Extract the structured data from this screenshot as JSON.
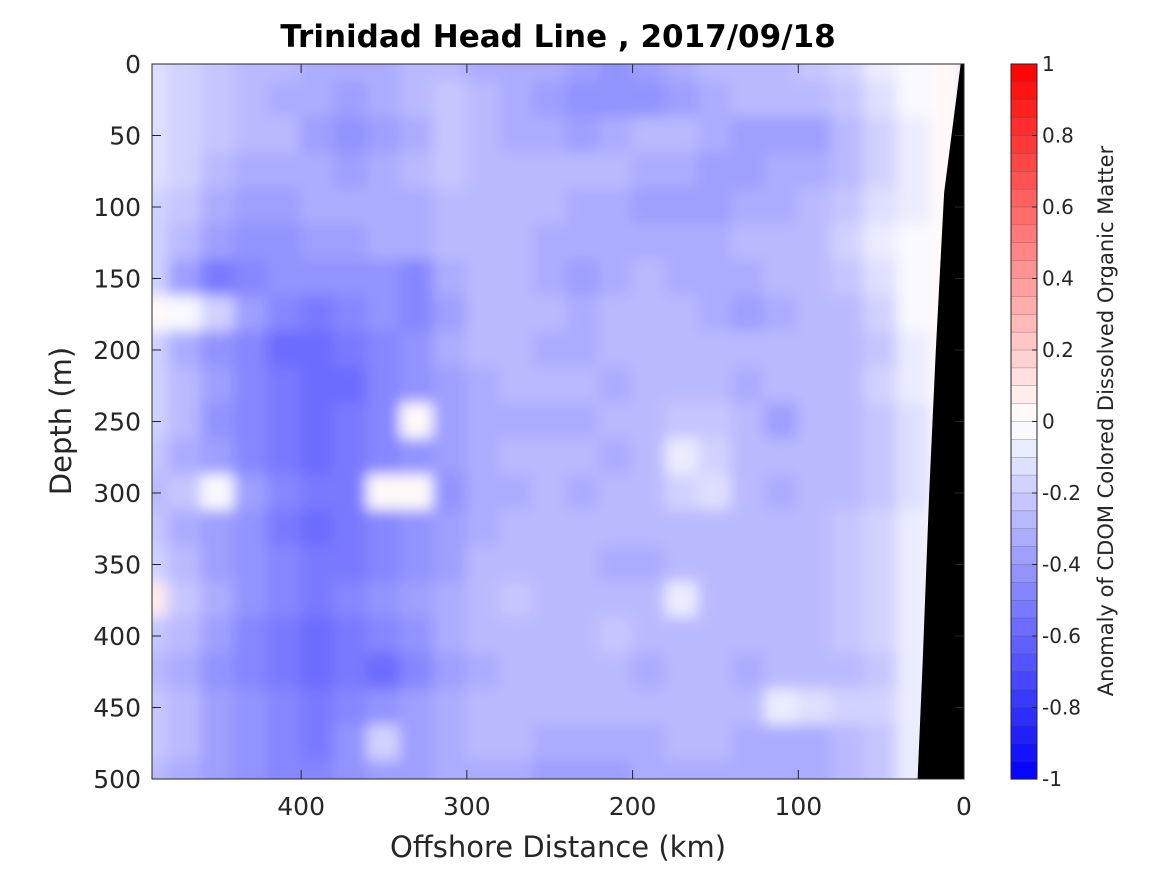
{
  "chart_data": {
    "type": "heatmap",
    "title": "Trinidad Head Line , 2017/09/18",
    "xlabel": "Offshore Distance (km)",
    "ylabel": "Depth (m)",
    "colorbar_label": "Anomaly of CDOM Colored Dissolved Organic Matter",
    "x_reversed": true,
    "y_reversed": true,
    "xlim": [
      490,
      0
    ],
    "ylim": [
      0,
      500
    ],
    "clim": [
      -1,
      1
    ],
    "colormap": {
      "low": "#0000ff",
      "mid": "#ffffff",
      "high": "#ff0000",
      "levels": 40
    },
    "x_ticks": [
      400,
      300,
      200,
      100,
      0
    ],
    "x_tick_labels": [
      "400",
      "300",
      "200",
      "100",
      "0"
    ],
    "y_ticks": [
      0,
      50,
      100,
      150,
      200,
      250,
      300,
      350,
      400,
      450,
      500
    ],
    "y_tick_labels": [
      "0",
      "50",
      "100",
      "150",
      "200",
      "250",
      "300",
      "350",
      "400",
      "450",
      "500"
    ],
    "colorbar_ticks": [
      1,
      0.8,
      0.6,
      0.4,
      0.2,
      0,
      -0.2,
      -0.4,
      -0.6,
      -0.8,
      -1
    ],
    "colorbar_tick_labels": [
      "1",
      "0.8",
      "0.6",
      "0.4",
      "0.2",
      "0",
      "-0.2",
      "-0.4",
      "-0.6",
      "-0.8",
      "-1"
    ],
    "x": [
      490,
      470,
      450,
      430,
      410,
      390,
      370,
      350,
      330,
      310,
      290,
      270,
      250,
      230,
      210,
      190,
      170,
      150,
      130,
      110,
      90,
      70,
      50,
      30,
      10
    ],
    "y": [
      0,
      25,
      50,
      75,
      100,
      125,
      150,
      175,
      200,
      225,
      250,
      275,
      300,
      325,
      350,
      375,
      400,
      425,
      450,
      475,
      500
    ],
    "z": [
      [
        -0.15,
        -0.2,
        -0.25,
        -0.3,
        -0.3,
        -0.35,
        -0.35,
        -0.35,
        -0.3,
        -0.3,
        -0.35,
        -0.35,
        -0.35,
        -0.4,
        -0.45,
        -0.4,
        -0.35,
        -0.3,
        -0.3,
        -0.3,
        -0.25,
        -0.2,
        -0.1,
        -0.05,
        0.0
      ],
      [
        -0.15,
        -0.2,
        -0.25,
        -0.3,
        -0.35,
        -0.35,
        -0.4,
        -0.35,
        -0.3,
        -0.25,
        -0.3,
        -0.35,
        -0.4,
        -0.45,
        -0.45,
        -0.45,
        -0.4,
        -0.35,
        -0.3,
        -0.3,
        -0.3,
        -0.25,
        -0.15,
        -0.05,
        0.0
      ],
      [
        -0.15,
        -0.2,
        -0.25,
        -0.3,
        -0.3,
        -0.4,
        -0.45,
        -0.4,
        -0.35,
        -0.25,
        -0.3,
        -0.35,
        -0.35,
        -0.4,
        -0.35,
        -0.3,
        -0.3,
        -0.35,
        -0.4,
        -0.4,
        -0.4,
        -0.3,
        -0.2,
        -0.1,
        0.0
      ],
      [
        -0.15,
        -0.2,
        -0.3,
        -0.35,
        -0.35,
        -0.35,
        -0.4,
        -0.35,
        -0.3,
        -0.25,
        -0.3,
        -0.3,
        -0.3,
        -0.3,
        -0.3,
        -0.35,
        -0.35,
        -0.4,
        -0.4,
        -0.35,
        -0.35,
        -0.3,
        -0.2,
        -0.1,
        0.0
      ],
      [
        -0.2,
        -0.25,
        -0.35,
        -0.4,
        -0.4,
        -0.35,
        -0.35,
        -0.35,
        -0.35,
        -0.3,
        -0.3,
        -0.3,
        -0.3,
        -0.35,
        -0.35,
        -0.4,
        -0.4,
        -0.4,
        -0.35,
        -0.35,
        -0.3,
        -0.25,
        -0.15,
        -0.1,
        0.0
      ],
      [
        -0.2,
        -0.3,
        -0.4,
        -0.45,
        -0.45,
        -0.4,
        -0.4,
        -0.35,
        -0.35,
        -0.3,
        -0.3,
        -0.3,
        -0.35,
        -0.35,
        -0.35,
        -0.35,
        -0.35,
        -0.35,
        -0.3,
        -0.3,
        -0.3,
        -0.2,
        -0.1,
        -0.05,
        0.0
      ],
      [
        -0.2,
        -0.4,
        -0.55,
        -0.5,
        -0.45,
        -0.45,
        -0.45,
        -0.45,
        -0.5,
        -0.35,
        -0.3,
        -0.3,
        -0.35,
        -0.4,
        -0.35,
        -0.3,
        -0.35,
        -0.35,
        -0.35,
        -0.3,
        -0.3,
        -0.25,
        -0.15,
        -0.05,
        0.0
      ],
      [
        0.0,
        -0.05,
        -0.2,
        -0.4,
        -0.5,
        -0.55,
        -0.5,
        -0.45,
        -0.5,
        -0.4,
        -0.3,
        -0.3,
        -0.3,
        -0.35,
        -0.3,
        -0.3,
        -0.3,
        -0.35,
        -0.4,
        -0.35,
        -0.3,
        -0.3,
        -0.2,
        -0.05,
        0.0
      ],
      [
        -0.2,
        -0.35,
        -0.45,
        -0.5,
        -0.6,
        -0.6,
        -0.55,
        -0.5,
        -0.45,
        -0.35,
        -0.3,
        -0.3,
        -0.35,
        -0.35,
        -0.3,
        -0.3,
        -0.3,
        -0.3,
        -0.3,
        -0.3,
        -0.3,
        -0.3,
        -0.25,
        -0.1,
        0.0
      ],
      [
        -0.2,
        -0.3,
        -0.4,
        -0.5,
        -0.55,
        -0.6,
        -0.6,
        -0.5,
        -0.45,
        -0.4,
        -0.35,
        -0.3,
        -0.3,
        -0.3,
        -0.35,
        -0.3,
        -0.3,
        -0.3,
        -0.35,
        -0.3,
        -0.3,
        -0.3,
        -0.2,
        -0.1,
        0.0
      ],
      [
        -0.2,
        -0.3,
        -0.45,
        -0.5,
        -0.55,
        -0.6,
        -0.55,
        -0.5,
        0.0,
        -0.4,
        -0.35,
        -0.35,
        -0.35,
        -0.35,
        -0.3,
        -0.3,
        -0.25,
        -0.25,
        -0.3,
        -0.4,
        -0.3,
        -0.3,
        -0.25,
        -0.15,
        0.0
      ],
      [
        -0.25,
        -0.35,
        -0.4,
        -0.5,
        -0.55,
        -0.6,
        -0.55,
        -0.5,
        -0.45,
        -0.4,
        -0.35,
        -0.3,
        -0.3,
        -0.3,
        -0.35,
        -0.3,
        -0.1,
        -0.2,
        -0.3,
        -0.3,
        -0.3,
        -0.3,
        -0.25,
        -0.15,
        0.0
      ],
      [
        -0.3,
        -0.25,
        -0.05,
        -0.4,
        -0.5,
        -0.55,
        -0.55,
        0.0,
        0.0,
        -0.45,
        -0.35,
        -0.35,
        -0.3,
        -0.35,
        -0.3,
        -0.3,
        -0.2,
        -0.15,
        -0.3,
        -0.35,
        -0.3,
        -0.3,
        -0.25,
        -0.15,
        0.0
      ],
      [
        -0.25,
        -0.35,
        -0.4,
        -0.45,
        -0.55,
        -0.6,
        -0.55,
        -0.5,
        -0.45,
        -0.4,
        -0.35,
        -0.3,
        -0.3,
        -0.3,
        -0.3,
        -0.3,
        -0.3,
        -0.3,
        -0.3,
        -0.3,
        -0.3,
        -0.25,
        -0.2,
        -0.1,
        0.0
      ],
      [
        -0.2,
        -0.3,
        -0.4,
        -0.45,
        -0.5,
        -0.55,
        -0.55,
        -0.5,
        -0.45,
        -0.4,
        -0.3,
        -0.3,
        -0.3,
        -0.3,
        -0.35,
        -0.35,
        -0.3,
        -0.3,
        -0.3,
        -0.3,
        -0.3,
        -0.25,
        -0.2,
        -0.1,
        0.0
      ],
      [
        0.05,
        -0.25,
        -0.35,
        -0.45,
        -0.5,
        -0.55,
        -0.5,
        -0.45,
        -0.4,
        -0.35,
        -0.3,
        -0.25,
        -0.3,
        -0.3,
        -0.3,
        -0.3,
        -0.1,
        -0.3,
        -0.3,
        -0.3,
        -0.3,
        -0.25,
        -0.2,
        -0.1,
        0.0
      ],
      [
        -0.25,
        -0.3,
        -0.4,
        -0.5,
        -0.55,
        -0.6,
        -0.55,
        -0.5,
        -0.45,
        -0.35,
        -0.3,
        -0.3,
        -0.3,
        -0.3,
        -0.25,
        -0.3,
        -0.3,
        -0.3,
        -0.3,
        -0.3,
        -0.3,
        -0.25,
        -0.2,
        -0.1,
        0.0
      ],
      [
        -0.3,
        -0.35,
        -0.45,
        -0.5,
        -0.55,
        -0.6,
        -0.55,
        -0.6,
        -0.5,
        -0.4,
        -0.35,
        -0.3,
        -0.3,
        -0.3,
        -0.3,
        -0.35,
        -0.3,
        -0.3,
        -0.35,
        -0.3,
        -0.3,
        -0.3,
        -0.25,
        -0.1,
        0.0
      ],
      [
        -0.25,
        -0.3,
        -0.4,
        -0.45,
        -0.5,
        -0.55,
        -0.5,
        -0.45,
        -0.4,
        -0.35,
        -0.3,
        -0.3,
        -0.3,
        -0.3,
        -0.3,
        -0.3,
        -0.3,
        -0.3,
        -0.3,
        -0.1,
        -0.15,
        -0.2,
        -0.2,
        -0.1,
        0.0
      ],
      [
        -0.25,
        -0.3,
        -0.4,
        -0.45,
        -0.5,
        -0.55,
        -0.45,
        -0.2,
        -0.4,
        -0.35,
        -0.3,
        -0.3,
        -0.35,
        -0.35,
        -0.35,
        -0.35,
        -0.3,
        -0.3,
        -0.35,
        -0.35,
        -0.35,
        -0.3,
        -0.25,
        -0.1,
        0.0
      ],
      [
        -0.3,
        -0.35,
        -0.4,
        -0.45,
        -0.5,
        -0.5,
        -0.45,
        -0.4,
        -0.4,
        -0.35,
        -0.35,
        -0.35,
        -0.4,
        -0.4,
        -0.4,
        -0.35,
        -0.35,
        -0.35,
        -0.35,
        -0.35,
        -0.35,
        -0.3,
        -0.25,
        -0.1,
        0.0
      ]
    ],
    "mask_color": "#000000",
    "mask_polygon": [
      [
        2,
        0
      ],
      [
        12,
        90
      ],
      [
        17,
        200
      ],
      [
        21,
        300
      ],
      [
        25,
        420
      ],
      [
        28,
        500
      ],
      [
        0,
        500
      ],
      [
        0,
        0
      ]
    ]
  }
}
